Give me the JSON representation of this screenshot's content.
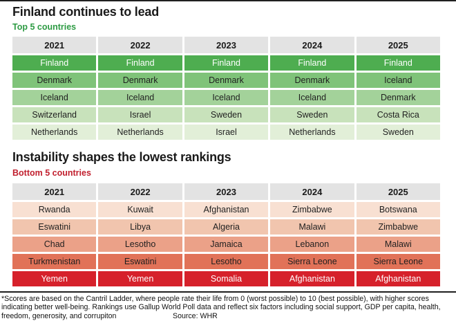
{
  "sections": [
    {
      "title": "Finland continues to lead",
      "subtitle": "Top 5 countries",
      "subtitle_color": "#2e9b44",
      "years": [
        "2021",
        "2022",
        "2023",
        "2024",
        "2025"
      ],
      "rows": [
        {
          "bg": "#4ead50",
          "fg": "#ffffff",
          "cells": [
            "Finland",
            "Finland",
            "Finland",
            "Finland",
            "Finland"
          ]
        },
        {
          "bg": "#7fc379",
          "fg": "#1f1f1f",
          "cells": [
            "Denmark",
            "Denmark",
            "Denmark",
            "Denmark",
            "Iceland"
          ]
        },
        {
          "bg": "#a3d29a",
          "fg": "#1f1f1f",
          "cells": [
            "Iceland",
            "Iceland",
            "Iceland",
            "Iceland",
            "Denmark"
          ]
        },
        {
          "bg": "#c8e2bb",
          "fg": "#1f1f1f",
          "cells": [
            "Switzerland",
            "Israel",
            "Sweden",
            "Sweden",
            "Costa Rica"
          ]
        },
        {
          "bg": "#e2efd8",
          "fg": "#1f1f1f",
          "cells": [
            "Netherlands",
            "Netherlands",
            "Israel",
            "Netherlands",
            "Sweden"
          ]
        }
      ]
    },
    {
      "title": "Instability shapes the lowest rankings",
      "subtitle": "Bottom 5 countries",
      "subtitle_color": "#c1202f",
      "years": [
        "2021",
        "2022",
        "2023",
        "2024",
        "2025"
      ],
      "rows": [
        {
          "bg": "#f8e0d2",
          "fg": "#1f1f1f",
          "cells": [
            "Rwanda",
            "Kuwait",
            "Afghanistan",
            "Zimbabwe",
            "Botswana"
          ]
        },
        {
          "bg": "#f1c5ae",
          "fg": "#1f1f1f",
          "cells": [
            "Eswatini",
            "Libya",
            "Algeria",
            "Malawi",
            "Zimbabwe"
          ]
        },
        {
          "bg": "#eba188",
          "fg": "#1f1f1f",
          "cells": [
            "Chad",
            "Lesotho",
            "Jamaica",
            "Lebanon",
            "Malawi"
          ]
        },
        {
          "bg": "#e17258",
          "fg": "#1f1f1f",
          "cells": [
            "Turkmenistan",
            "Eswatini",
            "Lesotho",
            "Sierra Leone",
            "Sierra Leone"
          ]
        },
        {
          "bg": "#d6212b",
          "fg": "#ffffff",
          "cells": [
            "Yemen",
            "Yemen",
            "Somalia",
            "Afghanistan",
            "Afghanistan"
          ]
        }
      ]
    }
  ],
  "footer": {
    "line1": "*Scores are based on the Cantril Ladder, where people rate their life from 0  (worst possible) to 10  (best possible), with higher scores",
    "line2": "indicating better well-being. Rankings use Gallup World Poll data and reflect six factors including social support, GDP per capita, health,",
    "line3": "freedom, generosity, and corrupiton",
    "source": "Source: WHR"
  },
  "chart_data": [
    {
      "type": "table",
      "title": "Finland continues to lead",
      "subtitle": "Top 5 countries",
      "columns": [
        "2021",
        "2022",
        "2023",
        "2024",
        "2025"
      ],
      "rows": [
        [
          "Finland",
          "Finland",
          "Finland",
          "Finland",
          "Finland"
        ],
        [
          "Denmark",
          "Denmark",
          "Denmark",
          "Denmark",
          "Iceland"
        ],
        [
          "Iceland",
          "Iceland",
          "Iceland",
          "Iceland",
          "Denmark"
        ],
        [
          "Switzerland",
          "Israel",
          "Sweden",
          "Sweden",
          "Costa Rica"
        ],
        [
          "Netherlands",
          "Netherlands",
          "Israel",
          "Netherlands",
          "Sweden"
        ]
      ],
      "row_colors": [
        "#4ead50",
        "#7fc379",
        "#a3d29a",
        "#c8e2bb",
        "#e2efd8"
      ],
      "legend_position": "none"
    },
    {
      "type": "table",
      "title": "Instability shapes the lowest rankings",
      "subtitle": "Bottom 5 countries",
      "columns": [
        "2021",
        "2022",
        "2023",
        "2024",
        "2025"
      ],
      "rows": [
        [
          "Rwanda",
          "Kuwait",
          "Afghanistan",
          "Zimbabwe",
          "Botswana"
        ],
        [
          "Eswatini",
          "Libya",
          "Algeria",
          "Malawi",
          "Zimbabwe"
        ],
        [
          "Chad",
          "Lesotho",
          "Jamaica",
          "Lebanon",
          "Malawi"
        ],
        [
          "Turkmenistan",
          "Eswatini",
          "Lesotho",
          "Sierra Leone",
          "Sierra Leone"
        ],
        [
          "Yemen",
          "Yemen",
          "Somalia",
          "Afghanistan",
          "Afghanistan"
        ]
      ],
      "row_colors": [
        "#f8e0d2",
        "#f1c5ae",
        "#eba188",
        "#e17258",
        "#d6212b"
      ],
      "legend_position": "none"
    }
  ]
}
